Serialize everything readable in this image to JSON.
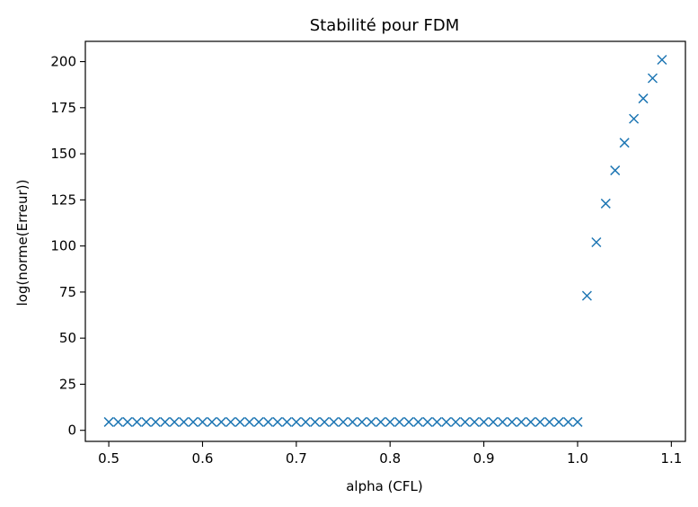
{
  "chart_data": {
    "type": "scatter",
    "title": "Stabilité pour FDM",
    "xlabel": "alpha (CFL)",
    "ylabel": "log(norme(Erreur))",
    "xlim": [
      0.475,
      1.115
    ],
    "ylim": [
      -6,
      211
    ],
    "xticks": [
      0.5,
      0.6,
      0.7,
      0.8,
      0.9,
      1.0,
      1.1
    ],
    "xtick_labels": [
      "0.5",
      "0.6",
      "0.7",
      "0.8",
      "0.9",
      "1.0",
      "1.1"
    ],
    "yticks": [
      0,
      25,
      50,
      75,
      100,
      125,
      150,
      175,
      200
    ],
    "ytick_labels": [
      "0",
      "25",
      "50",
      "75",
      "100",
      "125",
      "150",
      "175",
      "200"
    ],
    "marker": "x",
    "color": "#1f77b4",
    "grid": false,
    "series": [
      {
        "x": [
          0.5,
          0.51,
          0.52,
          0.53,
          0.54,
          0.55,
          0.56,
          0.57,
          0.58,
          0.59,
          0.6,
          0.61,
          0.62,
          0.63,
          0.64,
          0.65,
          0.66,
          0.67,
          0.68,
          0.69,
          0.7,
          0.71,
          0.72,
          0.73,
          0.74,
          0.75,
          0.76,
          0.77,
          0.78,
          0.79,
          0.8,
          0.81,
          0.82,
          0.83,
          0.84,
          0.85,
          0.86,
          0.87,
          0.88,
          0.89,
          0.9,
          0.91,
          0.92,
          0.93,
          0.94,
          0.95,
          0.96,
          0.97,
          0.98,
          0.99,
          1.0,
          1.01,
          1.02,
          1.03,
          1.04,
          1.05,
          1.06,
          1.07,
          1.08,
          1.09
        ],
        "y": [
          4.5,
          4.5,
          4.5,
          4.5,
          4.5,
          4.5,
          4.5,
          4.5,
          4.5,
          4.5,
          4.5,
          4.5,
          4.5,
          4.5,
          4.5,
          4.5,
          4.5,
          4.5,
          4.5,
          4.5,
          4.5,
          4.5,
          4.5,
          4.5,
          4.5,
          4.5,
          4.5,
          4.5,
          4.5,
          4.5,
          4.5,
          4.5,
          4.5,
          4.5,
          4.5,
          4.5,
          4.5,
          4.5,
          4.5,
          4.5,
          4.5,
          4.5,
          4.5,
          4.5,
          4.5,
          4.5,
          4.5,
          4.5,
          4.5,
          4.5,
          4.5,
          73,
          102,
          123,
          141,
          156,
          169,
          180,
          191,
          201
        ]
      }
    ]
  }
}
